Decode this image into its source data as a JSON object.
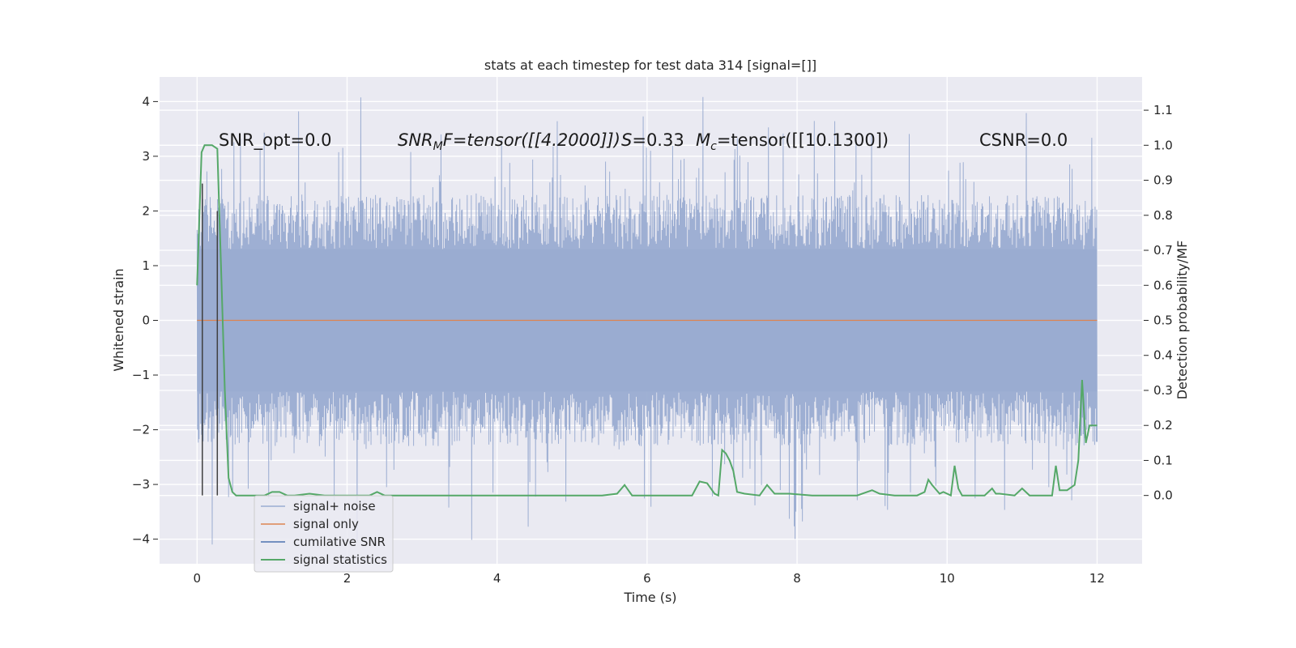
{
  "chart_data": {
    "type": "line",
    "title": "stats at each timestep for test data 314 [signal=[]]",
    "xlabel": "Time (s)",
    "ylabel": "Whitened strain",
    "y2label": "Detection probability/MF",
    "xlim": [
      -0.5,
      12.6
    ],
    "ylim": [
      -4.45,
      4.45
    ],
    "y2lim": [
      -0.195,
      1.195
    ],
    "xticks": [
      0,
      2,
      4,
      6,
      8,
      10,
      12
    ],
    "xtick_labels": [
      "0",
      "2",
      "4",
      "6",
      "8",
      "10",
      "12"
    ],
    "yticks": [
      4,
      3,
      2,
      1,
      0,
      -1,
      -2,
      -3,
      -4
    ],
    "ytick_labels": [
      "4",
      "3",
      "2",
      "1",
      "0",
      "−1",
      "−2",
      "−3",
      "−4"
    ],
    "y2ticks": [
      1.1,
      1.0,
      0.9,
      0.8,
      0.7,
      0.6,
      0.5,
      0.4,
      0.3,
      0.2,
      0.1,
      0.0
    ],
    "y2tick_labels": [
      "1.1",
      "1.0",
      "0.9",
      "0.8",
      "0.7",
      "0.6",
      "0.5",
      "0.4",
      "0.3",
      "0.2",
      "0.1",
      "0.0"
    ],
    "grid": true,
    "legend_position": "lower-left",
    "annotations": {
      "snr_opt": "SNR_opt=0.0",
      "snr_mf_label": "SNR",
      "snr_mf_sub": "M",
      "snr_mf_rest": "F=tensor([[4.2000]])",
      "s_label": "S",
      "s_value": "=0.33",
      "mc_label": "M",
      "mc_sub": "c",
      "mc_value": "=tensor([[10.1300])",
      "csnr": "CSNR=0.0"
    },
    "series": [
      {
        "name": "signal+ noise",
        "color": "#9aacd1",
        "axis": "left",
        "x_range": [
          0,
          12
        ],
        "core_band": [
          -1.3,
          1.3
        ],
        "envelope": [
          -2.3,
          2.3
        ],
        "extremes": [
          -4.1,
          4.1
        ]
      },
      {
        "name": "signal only",
        "color": "#dd8452",
        "axis": "left",
        "x": [
          0,
          12
        ],
        "y": [
          0,
          0
        ]
      },
      {
        "name": "cumilative SNR",
        "color": "#4c72b0",
        "axis": "left",
        "x": [],
        "y": []
      },
      {
        "name": "signal statistics",
        "color": "#55a868",
        "axis": "right",
        "x": [
          0.0,
          0.06,
          0.1,
          0.14,
          0.2,
          0.27,
          0.32,
          0.37,
          0.42,
          0.47,
          0.52,
          0.6,
          0.7,
          0.9,
          1.0,
          1.1,
          1.2,
          1.3,
          1.5,
          1.7,
          2.0,
          2.3,
          2.4,
          2.5,
          2.7,
          3.0,
          3.5,
          4.0,
          4.5,
          5.0,
          5.4,
          5.6,
          5.7,
          5.8,
          6.0,
          6.3,
          6.5,
          6.6,
          6.7,
          6.8,
          6.9,
          6.95,
          7.0,
          7.05,
          7.1,
          7.15,
          7.2,
          7.3,
          7.5,
          7.6,
          7.7,
          7.9,
          8.2,
          8.5,
          8.8,
          9.0,
          9.1,
          9.3,
          9.6,
          9.7,
          9.75,
          9.8,
          9.9,
          9.95,
          10.05,
          10.1,
          10.15,
          10.2,
          10.3,
          10.5,
          10.6,
          10.65,
          10.7,
          10.9,
          11.0,
          11.1,
          11.2,
          11.3,
          11.4,
          11.45,
          11.5,
          11.6,
          11.7,
          11.75,
          11.8,
          11.85,
          11.9,
          12.0
        ],
        "y": [
          0.6,
          0.98,
          1.0,
          1.0,
          1.0,
          0.99,
          0.65,
          0.3,
          0.05,
          0.01,
          0.0,
          0.0,
          0.0,
          0.0,
          0.01,
          0.01,
          0.0,
          0.0,
          0.005,
          0.0,
          0.0,
          0.0,
          0.01,
          0.0,
          0.0,
          0.0,
          0.0,
          0.0,
          0.0,
          0.0,
          0.0,
          0.005,
          0.03,
          0.0,
          0.0,
          0.0,
          0.0,
          0.0,
          0.04,
          0.035,
          0.005,
          0.0,
          0.13,
          0.12,
          0.1,
          0.07,
          0.01,
          0.005,
          0.0,
          0.03,
          0.005,
          0.005,
          0.0,
          0.0,
          0.0,
          0.015,
          0.005,
          0.0,
          0.0,
          0.01,
          0.045,
          0.03,
          0.005,
          0.01,
          0.0,
          0.085,
          0.02,
          0.0,
          0.0,
          0.0,
          0.02,
          0.005,
          0.005,
          0.0,
          0.02,
          0.0,
          0.0,
          0.0,
          0.0,
          0.085,
          0.015,
          0.015,
          0.03,
          0.1,
          0.33,
          0.15,
          0.2,
          0.2
        ]
      }
    ],
    "vertical_markers": [
      {
        "x": 0.07,
        "y_from": -3.2,
        "y_to": 2.5,
        "color": "#404040"
      },
      {
        "x": 0.27,
        "y_from": -3.2,
        "y_to": 2.0,
        "color": "#404040"
      }
    ]
  }
}
